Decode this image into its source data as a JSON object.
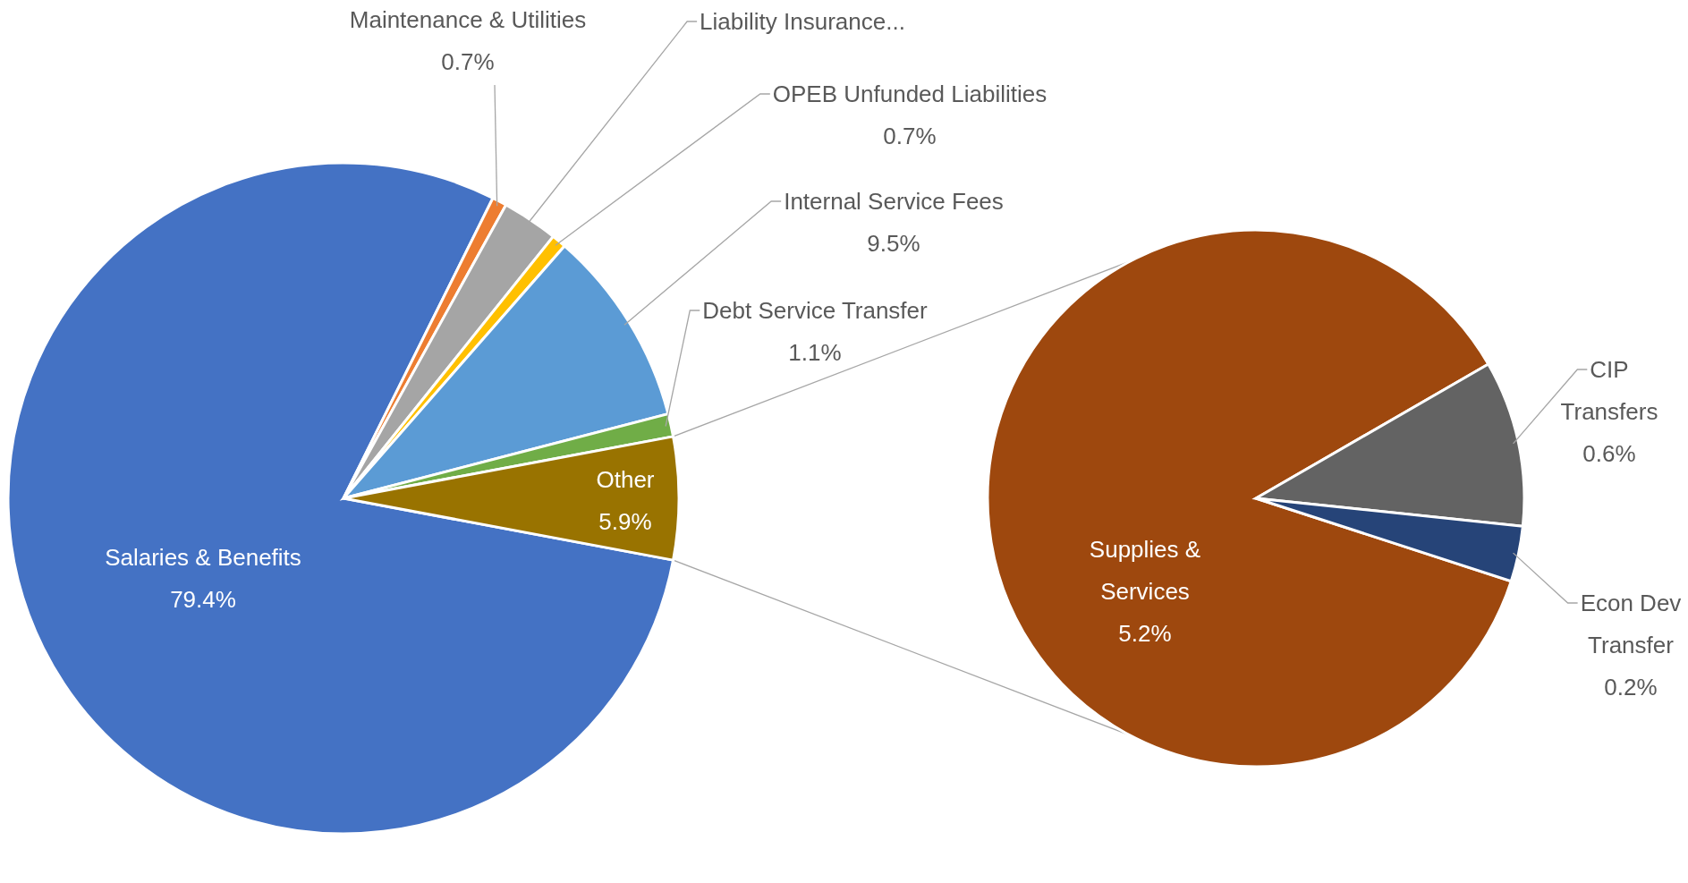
{
  "chart_data": [
    {
      "type": "pie",
      "categories": [
        "Salaries & Benefits",
        "Maintenance & Utilities",
        "Liability Insurance...",
        "OPEB Unfunded Liabilities",
        "Internal Service Fees",
        "Debt Service Transfer",
        "Other"
      ],
      "values": [
        79.4,
        0.7,
        2.7,
        0.7,
        9.5,
        1.1,
        5.9
      ],
      "colors": [
        "#4472c4",
        "#ed7d31",
        "#a5a5a5",
        "#ffc000",
        "#5b9bd5",
        "#70ad47",
        "#997300"
      ],
      "value_labels": [
        "79.4%",
        "0.7%",
        null,
        "0.7%",
        "9.5%",
        "1.1%",
        "5.9%"
      ]
    },
    {
      "type": "pie",
      "categories": [
        "Supplies & Services",
        "CIP Transfers",
        "Econ Dev Transfer"
      ],
      "values": [
        5.2,
        0.6,
        0.2
      ],
      "colors": [
        "#9e480e",
        "#636363",
        "#264478"
      ],
      "value_labels": [
        "5.2%",
        "0.6%",
        "0.2%"
      ]
    }
  ]
}
